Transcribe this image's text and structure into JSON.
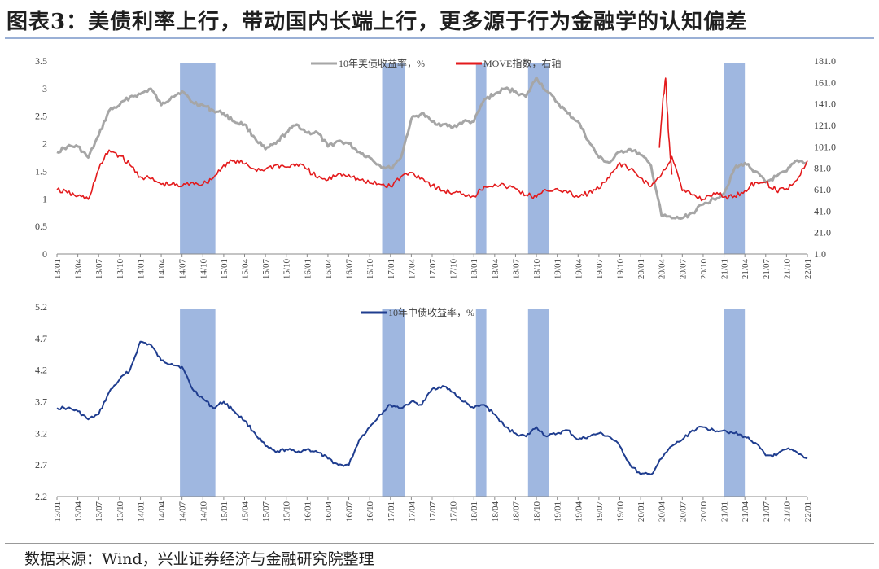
{
  "title": "图表3：美债利率上行，带动国内长端上行，更多源于行为金融学的认知偏差",
  "source": "数据来源：Wind，兴业证券经济与金融研究院整理",
  "colors": {
    "us10y": "#a6a6a6",
    "move": "#e31a1c",
    "cn10y": "#1f3d8f",
    "shade": "#8eaadb"
  },
  "chart_data": [
    {
      "type": "line",
      "x_ticks": [
        "13/01",
        "13/04",
        "13/07",
        "13/10",
        "14/01",
        "14/04",
        "14/07",
        "14/10",
        "15/01",
        "15/04",
        "15/07",
        "15/10",
        "16/01",
        "16/04",
        "16/07",
        "16/10",
        "17/01",
        "17/04",
        "17/07",
        "17/10",
        "18/01",
        "18/04",
        "18/07",
        "18/10",
        "19/01",
        "19/04",
        "19/07",
        "19/10",
        "20/01",
        "20/04",
        "20/07",
        "20/10",
        "21/01",
        "21/04",
        "21/07",
        "21/10",
        "22/01"
      ],
      "y_ticks_left": [
        "0",
        "0.5",
        "1",
        "1.5",
        "2",
        "2.5",
        "3",
        "3.5"
      ],
      "y_ticks_right": [
        "1.0",
        "21.0",
        "41.0",
        "61.0",
        "81.0",
        "101.0",
        "121.0",
        "141.0",
        "161.0",
        "181.0"
      ],
      "ylim_left": [
        0,
        3.5
      ],
      "ylim_right": [
        1,
        181
      ],
      "legend": [
        "10年美债收益率，%",
        "MOVE指数，右轴"
      ],
      "legend_position": "top-center",
      "shaded_periods": [
        [
          5.9,
          7.6
        ],
        [
          15.6,
          16.7
        ],
        [
          20.1,
          20.6
        ],
        [
          22.6,
          23.6
        ],
        [
          32.0,
          33.0
        ]
      ],
      "series": [
        {
          "name": "10年美债收益率，%",
          "axis": "left",
          "x": [
            0,
            0.5,
            1,
            1.5,
            2,
            2.5,
            3,
            3.5,
            4,
            4.5,
            5,
            5.5,
            6,
            6.5,
            7,
            7.5,
            8,
            8.5,
            9,
            9.5,
            10,
            10.5,
            11,
            11.5,
            12,
            12.5,
            13,
            13.5,
            14,
            14.5,
            15,
            15.5,
            16,
            16.5,
            17,
            17.5,
            18,
            18.5,
            19,
            19.5,
            20,
            20.5,
            21,
            21.5,
            22,
            22.5,
            23,
            23.5,
            24,
            24.5,
            25,
            25.5,
            26,
            26.5,
            27,
            27.5,
            28,
            28.5,
            29,
            29.5,
            30,
            30.5,
            31,
            31.5,
            32,
            32.5,
            33,
            33.5,
            34,
            34.5,
            35,
            35.5,
            36
          ],
          "y": [
            1.85,
            1.95,
            1.95,
            1.75,
            2.15,
            2.6,
            2.7,
            2.85,
            2.9,
            3.0,
            2.7,
            2.85,
            2.95,
            2.75,
            2.7,
            2.6,
            2.55,
            2.4,
            2.35,
            2.1,
            1.9,
            2.0,
            2.2,
            2.35,
            2.2,
            2.2,
            1.95,
            2.05,
            2.0,
            1.85,
            1.75,
            1.6,
            1.55,
            1.75,
            2.45,
            2.55,
            2.4,
            2.35,
            2.3,
            2.4,
            2.4,
            2.8,
            2.9,
            3.0,
            2.95,
            2.85,
            3.2,
            2.95,
            2.75,
            2.55,
            2.4,
            2.05,
            1.75,
            1.65,
            1.85,
            1.9,
            1.8,
            1.6,
            0.7,
            0.65,
            0.65,
            0.75,
            0.9,
            1.0,
            1.1,
            1.55,
            1.65,
            1.5,
            1.3,
            1.4,
            1.5,
            1.7,
            1.65
          ]
        },
        {
          "name": "MOVE指数，右轴",
          "axis": "right",
          "x": [
            0,
            0.5,
            1,
            1.5,
            2,
            2.5,
            3,
            3.5,
            4,
            4.5,
            5,
            5.5,
            6,
            6.5,
            7,
            7.5,
            8,
            8.5,
            9,
            9.5,
            10,
            10.5,
            11,
            11.5,
            12,
            12.5,
            13,
            13.5,
            14,
            14.5,
            15,
            15.5,
            16,
            16.5,
            17,
            17.5,
            18,
            18.5,
            19,
            19.5,
            20,
            20.5,
            21,
            21.5,
            22,
            22.5,
            23,
            23.5,
            24,
            24.5,
            25,
            25.5,
            26,
            26.5,
            27,
            27.5,
            28,
            28.5,
            29,
            29.5,
            30,
            30.5,
            31,
            31.5,
            32,
            32.5,
            33,
            33.5,
            34,
            34.5,
            35,
            35.5,
            36
          ],
          "y": [
            61,
            58,
            55,
            52,
            80,
            98,
            93,
            84,
            73,
            71,
            66,
            66,
            64,
            68,
            66,
            72,
            84,
            88,
            85,
            80,
            80,
            84,
            82,
            85,
            80,
            72,
            70,
            76,
            75,
            70,
            67,
            66,
            64,
            73,
            77,
            72,
            65,
            60,
            58,
            57,
            55,
            64,
            66,
            64,
            62,
            56,
            54,
            60,
            62,
            58,
            54,
            58,
            62,
            72,
            86,
            80,
            72,
            64,
            75,
            92,
            60,
            56,
            52,
            58,
            54,
            55,
            60,
            68,
            68,
            60,
            62,
            70,
            88
          ]
        },
        {
          "name": "",
          "axis": "right",
          "x": [
            28.9,
            29.05,
            29.2,
            29.35,
            29.5
          ],
          "y": [
            100,
            140,
            165,
            110,
            75
          ]
        }
      ]
    },
    {
      "type": "line",
      "x_ticks": [
        "13/01",
        "13/04",
        "13/07",
        "13/10",
        "14/01",
        "14/04",
        "14/07",
        "14/10",
        "15/01",
        "15/04",
        "15/07",
        "15/10",
        "16/01",
        "16/04",
        "16/07",
        "16/10",
        "17/01",
        "17/04",
        "17/07",
        "17/10",
        "18/01",
        "18/04",
        "18/07",
        "18/10",
        "19/01",
        "19/04",
        "19/07",
        "19/10",
        "20/01",
        "20/04",
        "20/07",
        "20/10",
        "21/01",
        "21/04",
        "21/07",
        "21/10",
        "22/01"
      ],
      "y_ticks_left": [
        "2.2",
        "2.7",
        "3.2",
        "3.7",
        "4.2",
        "4.7",
        "5.2"
      ],
      "ylim": [
        2.2,
        5.2
      ],
      "legend": [
        "10年中债收益率，%"
      ],
      "legend_position": "top-center",
      "shaded_periods": [
        [
          5.9,
          7.6
        ],
        [
          15.6,
          16.7
        ],
        [
          20.1,
          20.6
        ],
        [
          22.6,
          23.6
        ],
        [
          32.0,
          33.0
        ]
      ],
      "series": [
        {
          "name": "10年中债收益率，%",
          "x": [
            0,
            0.5,
            1,
            1.5,
            2,
            2.5,
            3,
            3.5,
            4,
            4.5,
            5,
            5.5,
            6,
            6.5,
            7,
            7.5,
            8,
            8.5,
            9,
            9.5,
            10,
            10.5,
            11,
            11.5,
            12,
            12.5,
            13,
            13.5,
            14,
            14.5,
            15,
            15.5,
            16,
            16.5,
            17,
            17.5,
            18,
            18.5,
            19,
            19.5,
            20,
            20.5,
            21,
            21.5,
            22,
            22.5,
            23,
            23.5,
            24,
            24.5,
            25,
            25.5,
            26,
            26.5,
            27,
            27.5,
            28,
            28.5,
            29,
            29.5,
            30,
            30.5,
            31,
            31.5,
            32,
            32.5,
            33,
            33.5,
            34,
            34.5,
            35,
            35.5,
            36
          ],
          "y": [
            3.6,
            3.6,
            3.55,
            3.42,
            3.5,
            3.85,
            4.05,
            4.2,
            4.65,
            4.6,
            4.35,
            4.3,
            4.25,
            3.9,
            3.75,
            3.6,
            3.7,
            3.55,
            3.4,
            3.2,
            3.0,
            2.9,
            2.95,
            2.9,
            2.95,
            2.9,
            2.8,
            2.7,
            2.7,
            3.1,
            3.3,
            3.5,
            3.65,
            3.6,
            3.7,
            3.65,
            3.9,
            3.95,
            3.85,
            3.7,
            3.6,
            3.65,
            3.5,
            3.3,
            3.2,
            3.15,
            3.3,
            3.15,
            3.2,
            3.25,
            3.1,
            3.15,
            3.2,
            3.15,
            3.0,
            2.7,
            2.55,
            2.55,
            2.8,
            3.0,
            3.1,
            3.25,
            3.3,
            3.25,
            3.25,
            3.2,
            3.15,
            3.05,
            2.85,
            2.85,
            2.95,
            2.9,
            2.8
          ]
        }
      ]
    }
  ]
}
